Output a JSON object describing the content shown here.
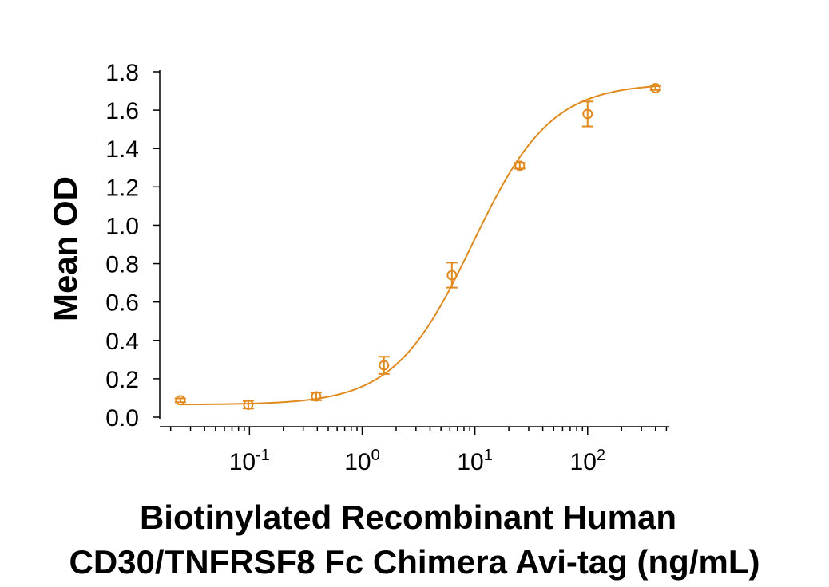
{
  "chart_data": {
    "type": "scatter",
    "xlabel": [
      "Biotinylated Recombinant  Human",
      "CD30/TNFRSF8 Fc Chimera Avi-tag (ng/mL)"
    ],
    "ylabel": "Mean OD",
    "x_scale": "log",
    "xlim": [
      0.016,
      530
    ],
    "ylim": [
      0,
      1.8
    ],
    "y_ticks": [
      "0.0",
      "0.2",
      "0.4",
      "0.6",
      "0.8",
      "1.0",
      "1.2",
      "1.4",
      "1.6",
      "1.8"
    ],
    "x_ticks": [
      {
        "value": 0.1,
        "base": "10",
        "exp": "-1"
      },
      {
        "value": 1,
        "base": "10",
        "exp": "0"
      },
      {
        "value": 10,
        "base": "10",
        "exp": "1"
      },
      {
        "value": 100,
        "base": "10",
        "exp": "2"
      }
    ],
    "grid": false,
    "color": "#e08a1e",
    "points": [
      {
        "x": 0.0244,
        "y": 0.088,
        "err": 0.01
      },
      {
        "x": 0.0977,
        "y": 0.065,
        "err": 0.02
      },
      {
        "x": 0.391,
        "y": 0.108,
        "err": 0.02
      },
      {
        "x": 1.56,
        "y": 0.27,
        "err": 0.045
      },
      {
        "x": 6.25,
        "y": 0.74,
        "err": 0.065
      },
      {
        "x": 25,
        "y": 1.31,
        "err": 0.015
      },
      {
        "x": 100,
        "y": 1.58,
        "err": 0.065
      },
      {
        "x": 400,
        "y": 1.715,
        "err": 0.01
      }
    ],
    "fit": {
      "bottom": 0.065,
      "top": 1.74,
      "ec50": 9.5,
      "hill": 1.25
    }
  }
}
